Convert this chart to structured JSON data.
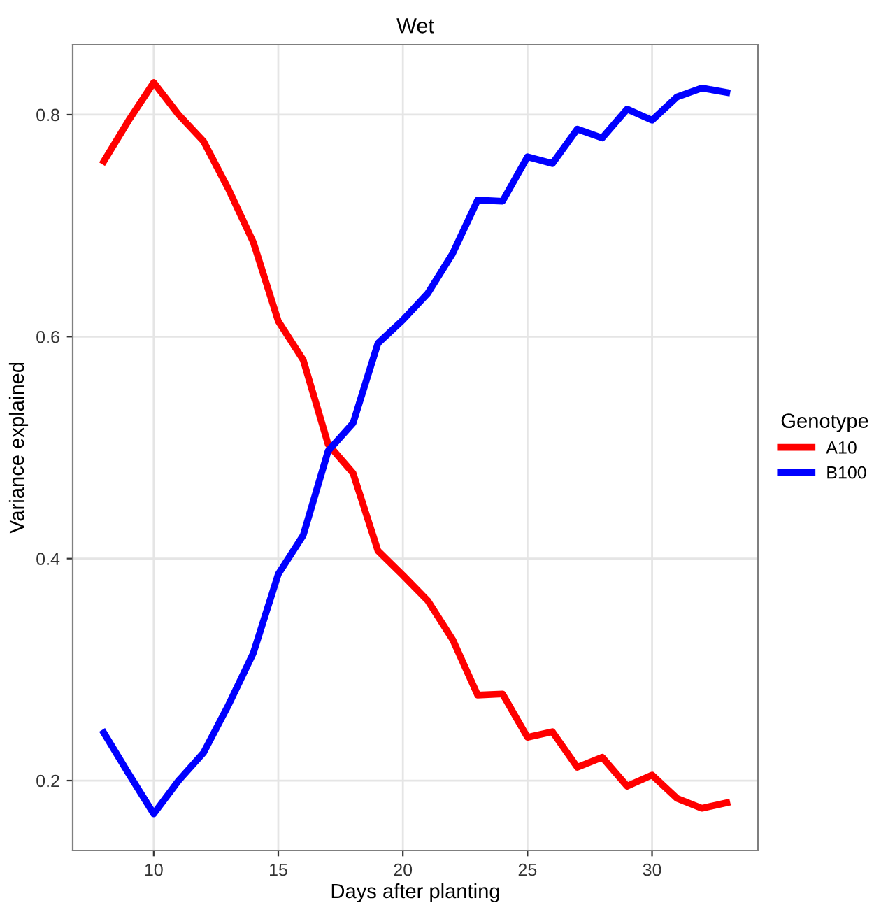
{
  "chart_data": {
    "type": "line",
    "title": "Wet",
    "xlabel": "Days after planting",
    "ylabel": "Variance explained",
    "legend_title": "Genotype",
    "x": [
      8,
      9,
      10,
      11,
      12,
      13,
      14,
      15,
      16,
      17,
      18,
      19,
      20,
      21,
      22,
      23,
      24,
      25,
      26,
      27,
      28,
      29,
      30,
      31,
      32,
      33
    ],
    "series": [
      {
        "name": "A10",
        "color": "#ff0000",
        "values": [
          0.758,
          0.795,
          0.829,
          0.8,
          0.776,
          0.733,
          0.685,
          0.614,
          0.579,
          0.503,
          0.477,
          0.407,
          0.385,
          0.362,
          0.327,
          0.277,
          0.278,
          0.239,
          0.244,
          0.212,
          0.221,
          0.195,
          0.205,
          0.184,
          0.175,
          0.18
        ]
      },
      {
        "name": "B100",
        "color": "#0000ff",
        "values": [
          0.243,
          0.206,
          0.17,
          0.2,
          0.225,
          0.268,
          0.315,
          0.386,
          0.421,
          0.497,
          0.522,
          0.594,
          0.615,
          0.639,
          0.675,
          0.723,
          0.722,
          0.762,
          0.756,
          0.787,
          0.779,
          0.805,
          0.795,
          0.816,
          0.824,
          0.82
        ]
      }
    ],
    "xlim": [
      6.75,
      34.25
    ],
    "xticks": [
      10,
      15,
      20,
      25,
      30
    ],
    "ylim": [
      0.137,
      0.863
    ],
    "yticks": [
      0.2,
      0.4,
      0.6,
      0.8
    ],
    "grid": true,
    "legend": "right",
    "marker": "none",
    "line_style": "solid"
  }
}
